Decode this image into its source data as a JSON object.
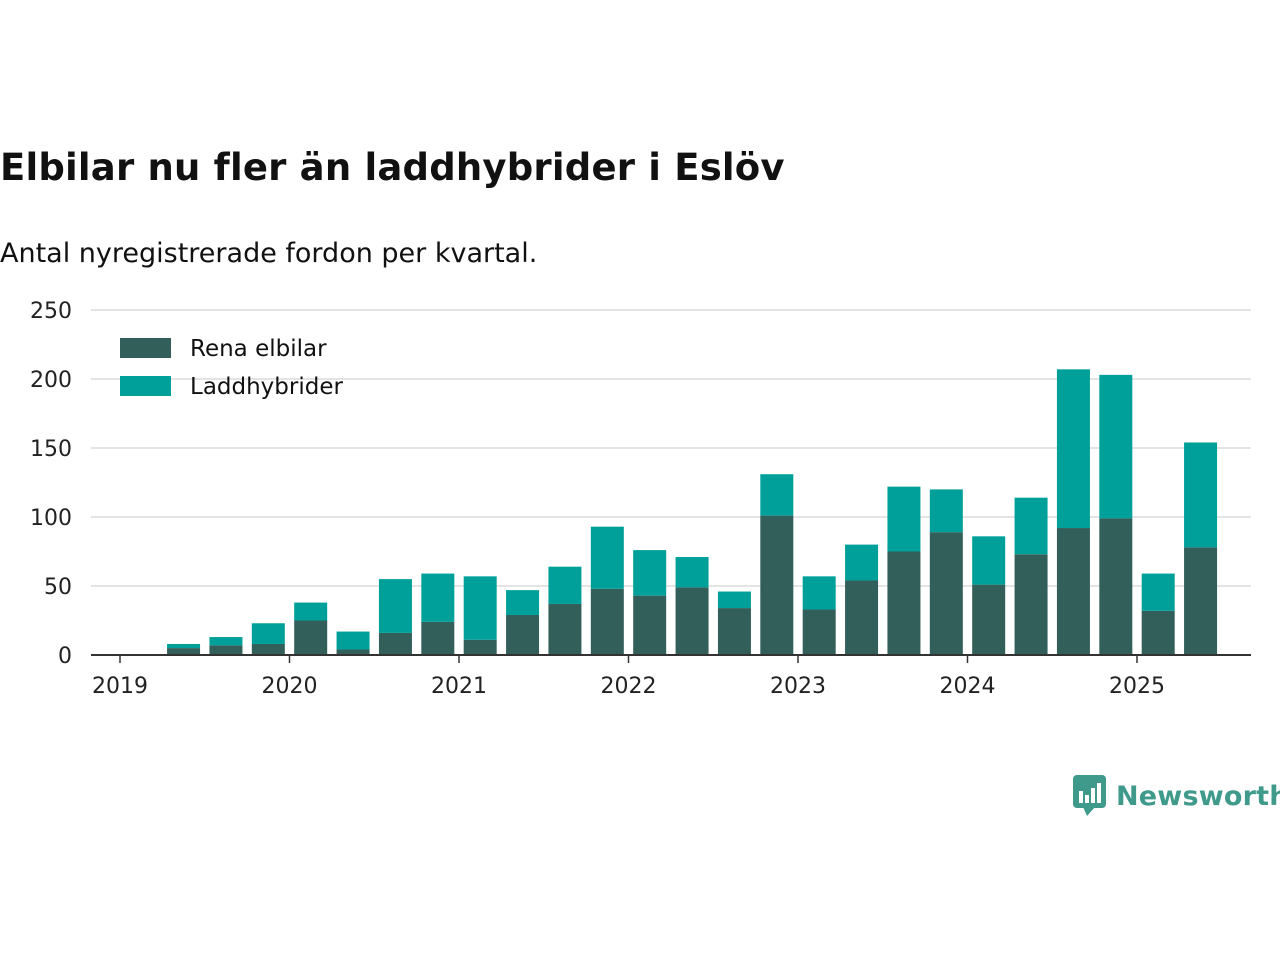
{
  "title": "Elbilar nu fler än laddhybrider i Eslöv",
  "subtitle": "Antal nyregistrerade fordon per kvartal.",
  "brand": {
    "name": "Newsworthy",
    "color": "#3f9a8c",
    "icon": "bar-chart-speech-bubble-icon"
  },
  "chart_data": {
    "type": "bar",
    "stacked": true,
    "categories": [
      "2019 Q1",
      "2019 Q2",
      "2019 Q3",
      "2019 Q4",
      "2020 Q1",
      "2020 Q2",
      "2020 Q3",
      "2020 Q4",
      "2021 Q1",
      "2021 Q2",
      "2021 Q3",
      "2021 Q4",
      "2022 Q1",
      "2022 Q2",
      "2022 Q3",
      "2022 Q4",
      "2023 Q1",
      "2023 Q2",
      "2023 Q3",
      "2023 Q4",
      "2024 Q1",
      "2024 Q2",
      "2024 Q3",
      "2024 Q4",
      "2025 Q1",
      "2025 Q2",
      "2025 Q3"
    ],
    "series": [
      {
        "name": "Rena elbilar",
        "color": "#335f5a",
        "values": [
          0,
          5,
          7,
          8,
          25,
          4,
          16,
          24,
          11,
          29,
          37,
          48,
          43,
          49,
          34,
          101,
          33,
          54,
          75,
          89,
          51,
          73,
          92,
          99,
          32,
          78,
          null
        ]
      },
      {
        "name": "Laddhybrider",
        "color": "#00a09a",
        "values": [
          0,
          3,
          6,
          15,
          13,
          13,
          39,
          35,
          46,
          18,
          27,
          45,
          33,
          22,
          12,
          30,
          24,
          26,
          47,
          31,
          35,
          41,
          115,
          104,
          27,
          76,
          null
        ]
      }
    ],
    "x_ticks": [
      "2019",
      "2020",
      "2021",
      "2022",
      "2023",
      "2024",
      "2025"
    ],
    "y_ticks": [
      0,
      50,
      100,
      150,
      200,
      250
    ],
    "ylim": [
      0,
      250
    ],
    "grid": true,
    "legend": "top-left"
  }
}
